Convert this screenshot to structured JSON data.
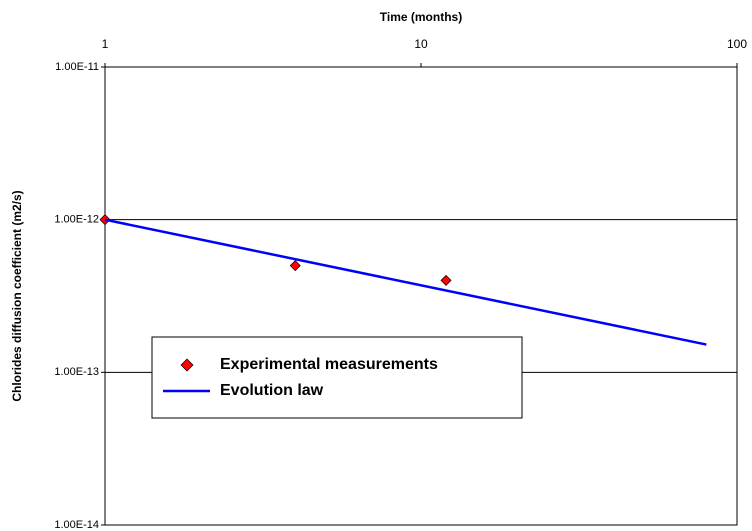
{
  "chart_data": {
    "type": "scatter",
    "x_label": "Time (months)",
    "y_label": "Chlorides diffusion coefficient (m2/s)",
    "xlog": true,
    "ylog": true,
    "grid": true,
    "legend": "lower left",
    "xlim": [
      1,
      100
    ],
    "xticks": [
      1,
      10,
      100
    ],
    "ylim": [
      1e-14,
      1e-11
    ],
    "yticks": [
      {
        "value": 1e-14,
        "label": "1.00E-14"
      },
      {
        "value": 1e-13,
        "label": "1.00E-13"
      },
      {
        "value": 1e-12,
        "label": "1.00E-12"
      },
      {
        "value": 1e-11,
        "label": "1.00E-11"
      }
    ],
    "series": [
      {
        "name": "Experimental measurements",
        "type": "scatter",
        "color": "#ff0000",
        "x": [
          1,
          4,
          12
        ],
        "values": [
          1e-12,
          5e-13,
          4e-13
        ]
      },
      {
        "name": "Evolution law",
        "type": "line",
        "color": "#0000ff",
        "x": [
          1,
          80
        ],
        "values": [
          1e-12,
          1.52e-13
        ]
      }
    ]
  }
}
